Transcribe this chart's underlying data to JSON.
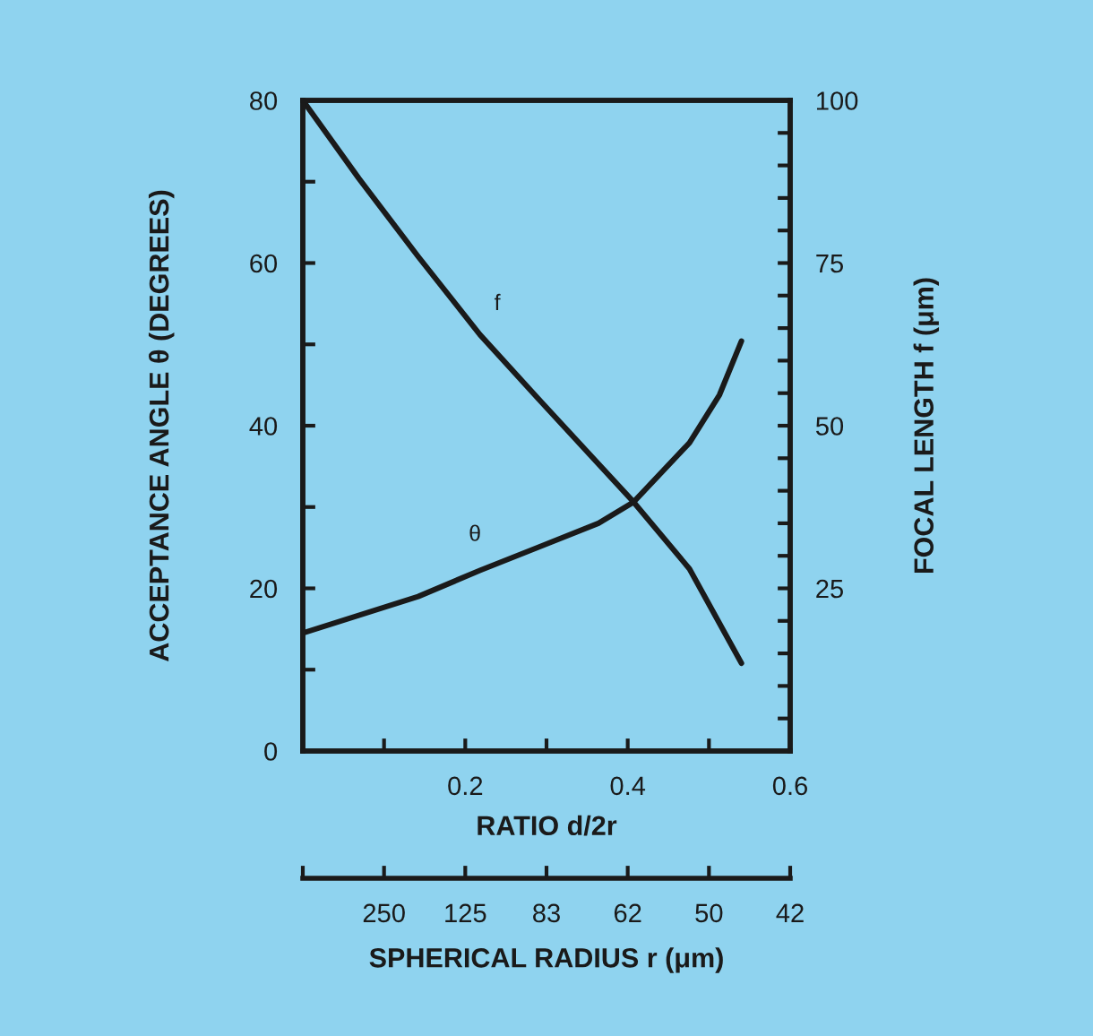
{
  "chart_data": [
    {
      "type": "line",
      "xlabel": "RATIO d/2r",
      "ylabel": "ACCEPTANCE ANGLE θ (DEGREES)",
      "y2label": "FOCAL LENGTH f (μm)",
      "xlim": [
        0,
        0.6
      ],
      "xticks": [
        {
          "value": 0.1,
          "label": null
        },
        0.2,
        {
          "value": 0.3,
          "label": null
        },
        0.4,
        {
          "value": 0.5,
          "label": null
        },
        0.6
      ],
      "ylim": [
        0,
        80
      ],
      "yticks": [
        0,
        {
          "value": 10,
          "label": null
        },
        20,
        {
          "value": 30,
          "label": null
        },
        40,
        {
          "value": 50,
          "label": null
        },
        60,
        {
          "value": 70,
          "label": null
        },
        80
      ],
      "y2lim": [
        0,
        100
      ],
      "y2ticks": [
        {
          "value": 0,
          "label": null
        },
        {
          "value": 5,
          "label": null
        },
        {
          "value": 10,
          "label": null
        },
        {
          "value": 15,
          "label": null
        },
        {
          "value": 20,
          "label": null
        },
        25,
        {
          "value": 30,
          "label": null
        },
        {
          "value": 35,
          "label": null
        },
        {
          "value": 40,
          "label": null
        },
        {
          "value": 45,
          "label": null
        },
        50,
        {
          "value": 55,
          "label": null
        },
        {
          "value": 60,
          "label": null
        },
        {
          "value": 65,
          "label": null
        },
        {
          "value": 70,
          "label": null
        },
        75,
        {
          "value": 80,
          "label": null
        },
        {
          "value": 85,
          "label": null
        },
        {
          "value": 90,
          "label": null
        },
        {
          "value": 95,
          "label": null
        },
        100
      ],
      "grid": false,
      "marker": "none",
      "line_style": "solid",
      "series": [
        {
          "name": "θ",
          "color": "#1a1a1a",
          "x": [
            0,
            0.142,
            0.218,
            0.291,
            0.364,
            0.407,
            0.476,
            0.513,
            0.54
          ],
          "values": [
            14.5,
            19,
            22.2,
            25.1,
            28,
            30.6,
            37.9,
            43.8,
            50.4
          ]
        },
        {
          "name": "f",
          "color": "#1a1a1a",
          "axis": "y2",
          "x": [
            0,
            0.069,
            0.142,
            0.218,
            0.291,
            0.407,
            0.476,
            0.54
          ],
          "values": [
            100,
            88,
            76,
            64,
            54,
            38.3,
            28,
            13.5
          ]
        }
      ]
    },
    {
      "type": "other",
      "xlabel": "SPHERICAL RADIUS r (μm)",
      "categories": [
        null,
        "250",
        "125",
        "83",
        "62",
        "50",
        "42"
      ]
    }
  ]
}
